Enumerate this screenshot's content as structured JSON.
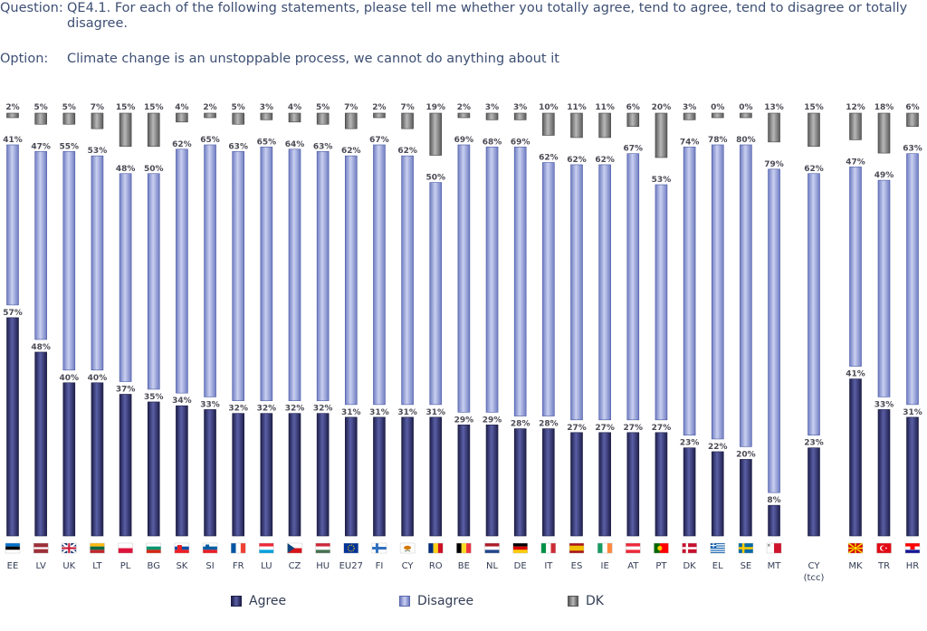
{
  "header": {
    "question_label": "Question:",
    "question_text": "QE4.1. For each of the following statements, please tell me whether you totally agree, tend to agree, tend to disagree or totally disagree.",
    "option_label": "Option:",
    "option_text": "Climate change is an unstoppable process, we cannot do anything about it"
  },
  "colors": {
    "agree": "#3b3f7a",
    "disagree": "#8e9ad4",
    "dk": "#7a7a7a"
  },
  "chart_data": {
    "type": "bar",
    "stacked": false,
    "categories": [
      "EE",
      "LV",
      "UK",
      "LT",
      "PL",
      "BG",
      "SK",
      "SI",
      "FR",
      "LU",
      "CZ",
      "HU",
      "EU27",
      "FI",
      "CY",
      "RO",
      "BE",
      "NL",
      "DE",
      "IT",
      "ES",
      "IE",
      "AT",
      "PT",
      "DK",
      "EL",
      "SE",
      "MT",
      "CY (tcc)",
      "MK",
      "TR",
      "HR"
    ],
    "flags": [
      "EE",
      "LV",
      "UK",
      "LT",
      "PL",
      "BG",
      "SK",
      "SI",
      "FR",
      "LU",
      "CZ",
      "HU",
      "EU27",
      "FI",
      "CY",
      "RO",
      "BE",
      "NL",
      "DE",
      "IT",
      "ES",
      "IE",
      "AT",
      "PT",
      "DK",
      "EL",
      "SE",
      "MT",
      "",
      "MK",
      "TR",
      "HR"
    ],
    "series": [
      {
        "name": "Agree",
        "values": [
          57,
          48,
          40,
          40,
          37,
          35,
          34,
          33,
          32,
          32,
          32,
          32,
          31,
          31,
          31,
          31,
          29,
          29,
          28,
          28,
          27,
          27,
          27,
          27,
          23,
          22,
          20,
          8,
          23,
          41,
          33,
          31
        ]
      },
      {
        "name": "Disagree",
        "values": [
          41,
          47,
          55,
          53,
          48,
          50,
          62,
          65,
          63,
          65,
          64,
          63,
          62,
          67,
          62,
          50,
          69,
          68,
          69,
          62,
          62,
          62,
          67,
          53,
          74,
          78,
          80,
          79,
          62,
          47,
          49,
          63
        ]
      },
      {
        "name": "DK",
        "values": [
          2,
          5,
          5,
          7,
          15,
          15,
          4,
          2,
          5,
          3,
          4,
          5,
          7,
          2,
          7,
          19,
          2,
          3,
          3,
          10,
          11,
          11,
          6,
          20,
          3,
          0,
          0,
          13,
          15,
          12,
          18,
          6
        ]
      }
    ],
    "value_suffix": "%",
    "ylim": [
      0,
      100
    ],
    "legend": [
      "Agree",
      "Disagree",
      "DK"
    ],
    "legend_position": "bottom-center"
  }
}
